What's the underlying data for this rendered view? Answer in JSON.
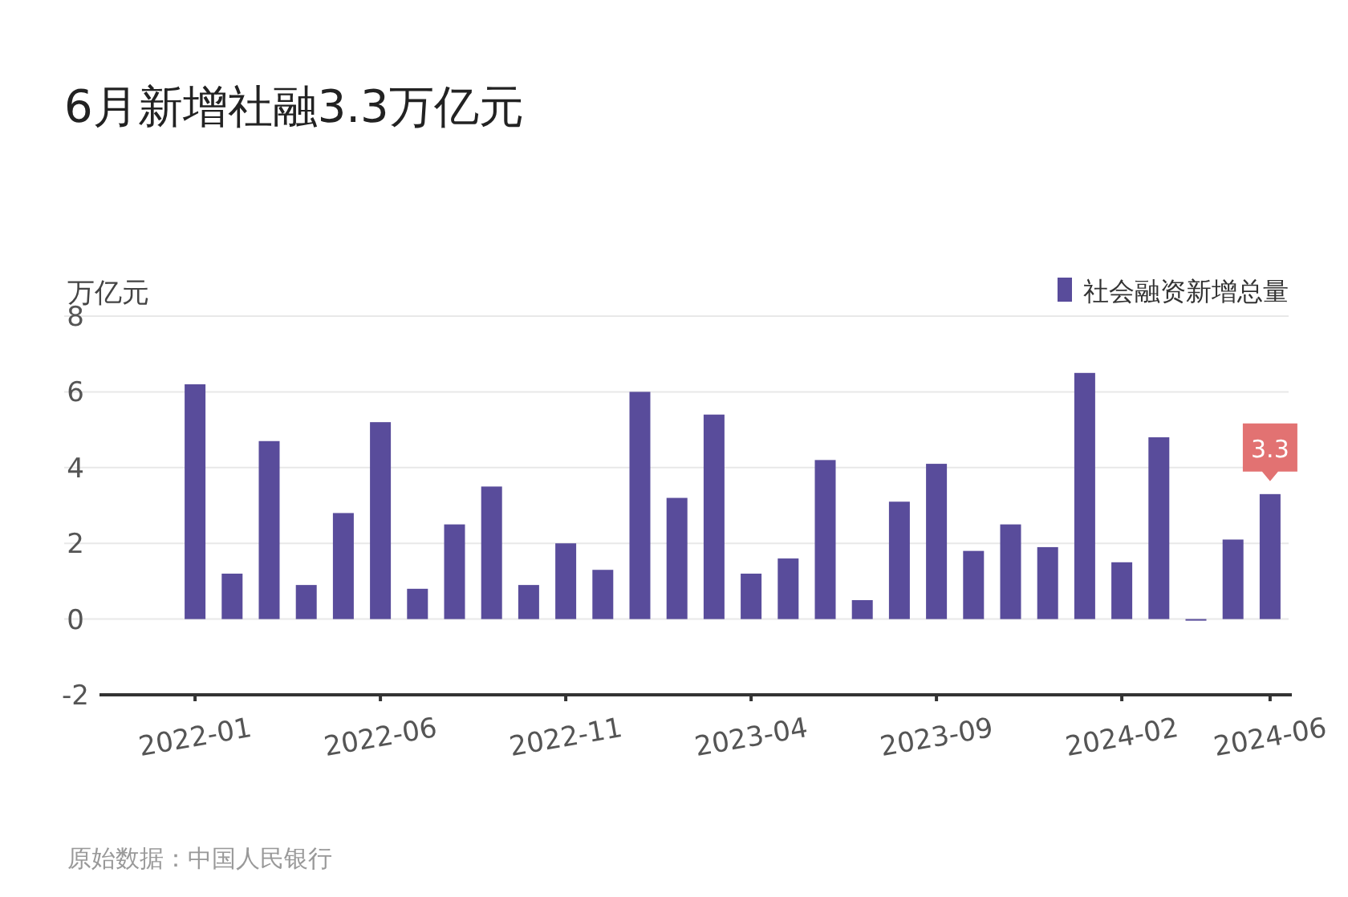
{
  "chart_data": {
    "type": "bar",
    "title": "6月新增社融3.3万亿元",
    "ylabel": "万亿元",
    "categories": [
      "2022-01",
      null,
      null,
      null,
      null,
      "2022-06",
      null,
      null,
      null,
      null,
      "2022-11",
      null,
      null,
      null,
      null,
      "2023-04",
      null,
      null,
      null,
      null,
      "2023-09",
      null,
      null,
      null,
      null,
      "2024-02",
      null,
      null,
      null,
      "2024-06"
    ],
    "series": [
      {
        "name": "社会融资新增总量",
        "color": "#594c9b",
        "values": [
          6.2,
          1.2,
          4.7,
          0.9,
          2.8,
          5.2,
          0.8,
          2.5,
          3.5,
          0.9,
          2.0,
          1.3,
          6.0,
          3.2,
          5.4,
          1.2,
          1.6,
          4.2,
          0.5,
          3.1,
          4.1,
          1.8,
          2.5,
          1.9,
          6.5,
          1.5,
          4.8,
          0.0,
          2.1,
          3.3
        ],
        "value_labels": [
          null,
          null,
          null,
          null,
          null,
          null,
          null,
          null,
          null,
          null,
          null,
          null,
          null,
          null,
          null,
          null,
          null,
          null,
          null,
          null,
          null,
          null,
          null,
          null,
          null,
          null,
          null,
          null,
          null,
          "3.3"
        ]
      }
    ],
    "ylim": [
      -2,
      8
    ],
    "yticks": [
      -2,
      0,
      2,
      4,
      6,
      8
    ],
    "grid": "y",
    "legend": "top right",
    "annotations": [
      "原始数据：中国人民银行"
    ]
  }
}
